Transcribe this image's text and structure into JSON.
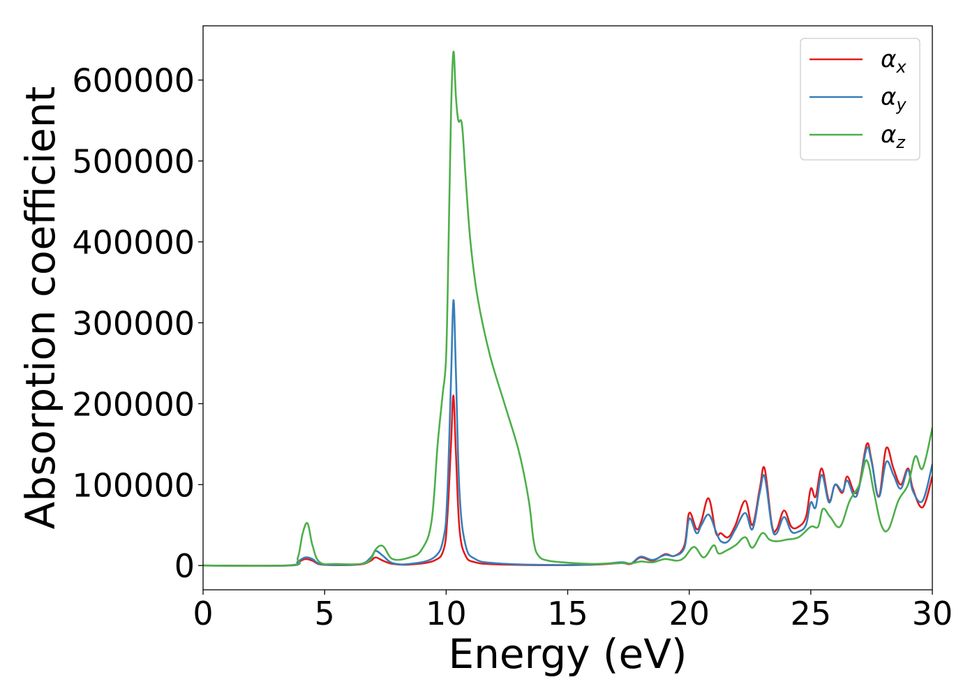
{
  "chart_data": {
    "type": "line",
    "title": "",
    "xlabel": "Energy (eV)",
    "ylabel": "Absorption coefficient",
    "xlim": [
      0,
      30
    ],
    "ylim": [
      -30000,
      667000
    ],
    "xticks": [
      0,
      5,
      10,
      15,
      20,
      25,
      30
    ],
    "xtick_labels": [
      "0",
      "5",
      "10",
      "15",
      "20",
      "25",
      "30"
    ],
    "yticks": [
      0,
      100000,
      200000,
      300000,
      400000,
      500000,
      600000
    ],
    "ytick_labels": [
      "0",
      "100000",
      "200000",
      "300000",
      "400000",
      "500000",
      "600000"
    ],
    "grid": false,
    "legend_position": "top-right",
    "series": [
      {
        "name": "αx",
        "symbol": "α",
        "subscript": "x",
        "color": "#e41a1c",
        "x": [
          0,
          3.5,
          3.9,
          4.2,
          4.5,
          4.8,
          5.5,
          6.5,
          6.9,
          7.1,
          7.4,
          7.8,
          8.5,
          9.5,
          9.9,
          10.05,
          10.2,
          10.3,
          10.4,
          10.55,
          10.8,
          11.2,
          12,
          14,
          16,
          17.2,
          17.6,
          18,
          18.5,
          19,
          19.4,
          19.8,
          20,
          20.3,
          20.5,
          20.8,
          21.1,
          21.3,
          21.6,
          21.9,
          22.3,
          22.6,
          22.9,
          23.1,
          23.4,
          23.6,
          23.9,
          24.2,
          24.5,
          24.8,
          25.0,
          25.2,
          25.45,
          25.75,
          26.0,
          26.3,
          26.5,
          26.8,
          27.0,
          27.3,
          27.5,
          27.8,
          28.1,
          28.4,
          28.7,
          29.0,
          29.2,
          29.6,
          30.0
        ],
        "values": [
          0,
          0,
          4000,
          8000,
          6000,
          1500,
          500,
          1500,
          6000,
          10000,
          6000,
          2000,
          1200,
          6000,
          20000,
          60000,
          150000,
          210000,
          140000,
          45000,
          12000,
          4000,
          1500,
          500,
          1000,
          3000,
          2000,
          10000,
          6000,
          14000,
          12000,
          25000,
          65000,
          45000,
          55000,
          83000,
          40000,
          40000,
          35000,
          50000,
          80000,
          50000,
          95000,
          120000,
          50000,
          45000,
          68000,
          48000,
          48000,
          60000,
          95000,
          85000,
          120000,
          80000,
          100000,
          90000,
          110000,
          90000,
          100000,
          150000,
          130000,
          85000,
          145000,
          120000,
          100000,
          120000,
          95000,
          72000,
          110000
        ]
      },
      {
        "name": "αy",
        "symbol": "α",
        "subscript": "y",
        "color": "#377eb8",
        "x": [
          0,
          3.5,
          3.9,
          4.2,
          4.5,
          4.8,
          5.5,
          6.5,
          6.9,
          7.1,
          7.4,
          7.8,
          8.5,
          9.5,
          9.9,
          10.05,
          10.2,
          10.3,
          10.4,
          10.55,
          10.8,
          11.2,
          12,
          14,
          16,
          17.2,
          17.6,
          18,
          18.5,
          19,
          19.4,
          19.8,
          20,
          20.3,
          20.5,
          20.8,
          21.1,
          21.3,
          21.6,
          21.9,
          22.3,
          22.6,
          22.9,
          23.1,
          23.4,
          23.6,
          23.9,
          24.2,
          24.5,
          24.8,
          25.0,
          25.2,
          25.45,
          25.75,
          26.0,
          26.3,
          26.5,
          26.8,
          27.0,
          27.3,
          27.5,
          27.8,
          28.1,
          28.4,
          28.7,
          29.0,
          29.2,
          29.6,
          30.0
        ],
        "values": [
          0,
          0,
          5000,
          10000,
          8000,
          2000,
          700,
          2000,
          10000,
          18000,
          12000,
          3000,
          2000,
          10000,
          35000,
          90000,
          230000,
          328000,
          240000,
          90000,
          25000,
          8000,
          3000,
          800,
          1200,
          4000,
          2500,
          11000,
          7000,
          13000,
          12000,
          22000,
          58000,
          40000,
          50000,
          63000,
          42000,
          30000,
          30000,
          45000,
          65000,
          45000,
          90000,
          110000,
          48000,
          40000,
          60000,
          42000,
          42000,
          50000,
          78000,
          72000,
          112000,
          78000,
          100000,
          92000,
          105000,
          85000,
          98000,
          145000,
          128000,
          85000,
          128000,
          112000,
          95000,
          118000,
          92000,
          80000,
          125000
        ]
      },
      {
        "name": "αz",
        "symbol": "α",
        "subscript": "z",
        "color": "#4daf4a",
        "x": [
          0,
          3.6,
          3.9,
          4.1,
          4.3,
          4.5,
          4.8,
          5.5,
          6.5,
          6.9,
          7.1,
          7.4,
          7.8,
          8.5,
          9.0,
          9.4,
          9.65,
          9.85,
          10.0,
          10.1,
          10.2,
          10.3,
          10.4,
          10.5,
          10.65,
          10.8,
          11.0,
          11.3,
          11.8,
          12.4,
          13.0,
          13.4,
          13.6,
          13.8,
          14.2,
          15,
          16,
          17.2,
          17.6,
          18,
          18.5,
          19,
          19.5,
          19.8,
          20.2,
          20.6,
          21.0,
          21.2,
          21.5,
          21.9,
          22.3,
          22.6,
          23.0,
          23.3,
          23.6,
          24.0,
          24.5,
          25.0,
          25.3,
          25.5,
          25.8,
          26.2,
          26.6,
          27.0,
          27.3,
          27.6,
          27.9,
          28.2,
          28.6,
          29.0,
          29.3,
          29.6,
          30.0
        ],
        "values": [
          0,
          500,
          10000,
          40000,
          52000,
          25000,
          4000,
          2000,
          2000,
          8000,
          20000,
          24000,
          8000,
          10000,
          20000,
          55000,
          150000,
          210000,
          260000,
          400000,
          560000,
          635000,
          580000,
          550000,
          545000,
          480000,
          400000,
          330000,
          260000,
          200000,
          140000,
          80000,
          30000,
          12000,
          6000,
          3500,
          2000,
          3000,
          2500,
          5000,
          4000,
          8000,
          6000,
          10000,
          23000,
          10000,
          25000,
          15000,
          18000,
          25000,
          35000,
          22000,
          40000,
          32000,
          30000,
          32000,
          35000,
          48000,
          48000,
          70000,
          60000,
          48000,
          80000,
          100000,
          130000,
          90000,
          50000,
          45000,
          80000,
          100000,
          135000,
          120000,
          170000
        ]
      }
    ]
  }
}
